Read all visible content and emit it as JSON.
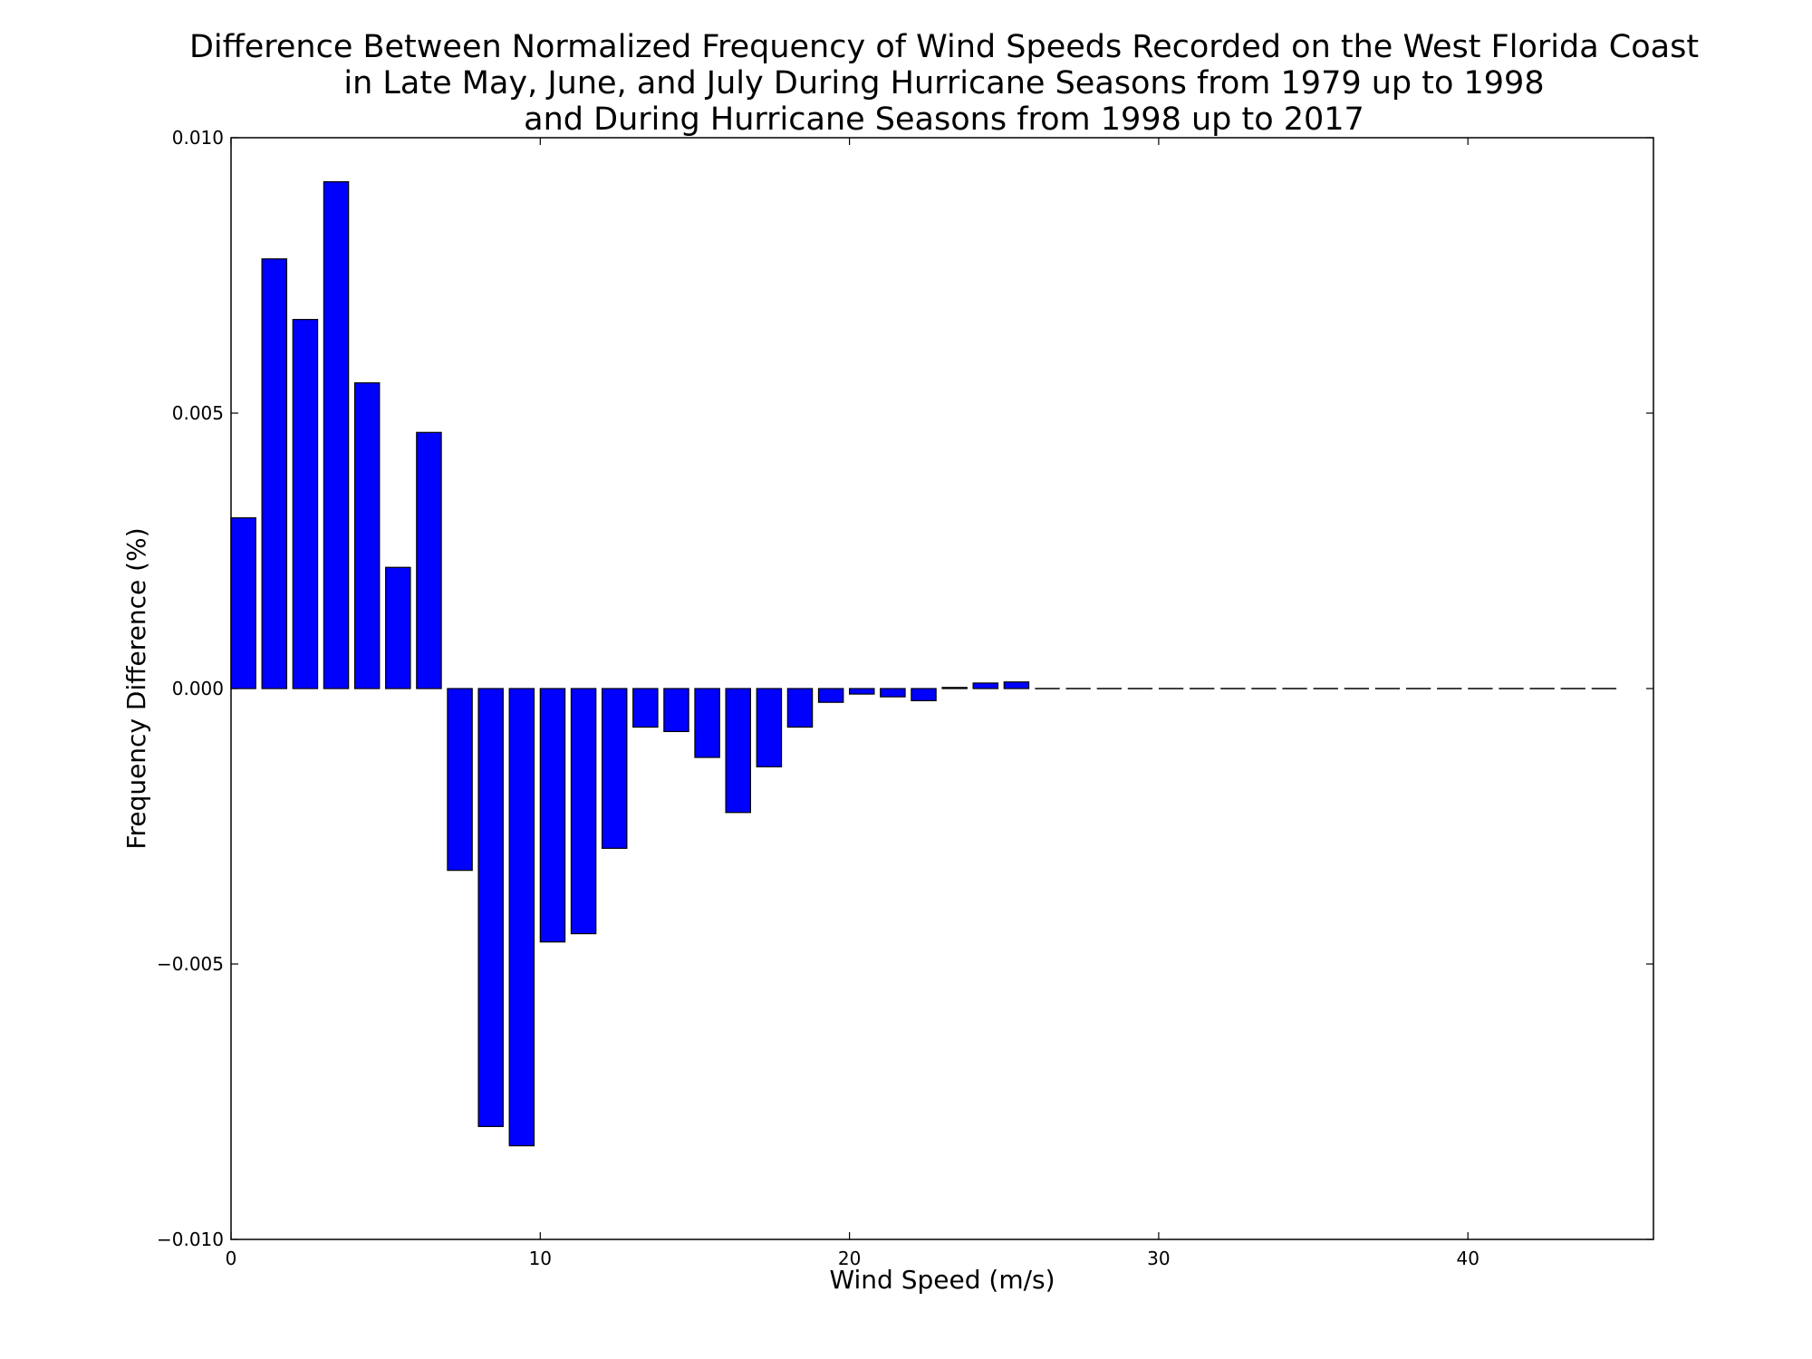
{
  "chart_data": {
    "type": "bar",
    "title_lines": [
      "Difference Between Normalized Frequency of Wind Speeds Recorded on the West Florida Coast",
      "in Late May, June, and July During Hurricane Seasons from 1979 up to 1998",
      "and During Hurricane Seasons from 1998 up to 2017"
    ],
    "xlabel": "Wind Speed (m/s)",
    "ylabel": "Frequency Difference (%)",
    "xlim": [
      0,
      46
    ],
    "ylim": [
      -0.01,
      0.01
    ],
    "x_ticks": [
      0,
      10,
      20,
      30,
      40
    ],
    "x_tick_labels": [
      "0",
      "10",
      "20",
      "30",
      "40"
    ],
    "y_ticks": [
      0.01,
      0.005,
      0.0,
      -0.005,
      -0.01
    ],
    "y_tick_labels": [
      "0.010",
      "0.005",
      "0.000",
      "−0.005",
      "−0.010"
    ],
    "bar_width": 0.8,
    "bar_color": "#0000ff",
    "edge_color": "#000000",
    "grid": false,
    "x": [
      0,
      1,
      2,
      3,
      4,
      5,
      6,
      7,
      8,
      9,
      10,
      11,
      12,
      13,
      14,
      15,
      16,
      17,
      18,
      19,
      20,
      21,
      22,
      23,
      24,
      25,
      26,
      27,
      28,
      29,
      30,
      31,
      32,
      33,
      34,
      35,
      36,
      37,
      38,
      39,
      40,
      41,
      42,
      43,
      44
    ],
    "values": [
      0.0031,
      0.0078,
      0.0067,
      0.0092,
      0.00555,
      0.0022,
      0.00465,
      -0.0033,
      -0.00795,
      -0.0083,
      -0.0046,
      -0.00445,
      -0.0029,
      -0.0007,
      -0.00078,
      -0.00125,
      -0.00225,
      -0.00142,
      -0.0007,
      -0.00025,
      -0.0001,
      -0.00015,
      -0.00022,
      2e-05,
      0.0001,
      0.00012,
      0,
      0,
      0,
      0,
      0,
      0,
      0,
      0,
      0,
      0,
      0,
      0,
      0,
      0,
      0,
      0,
      0,
      0,
      0
    ]
  }
}
